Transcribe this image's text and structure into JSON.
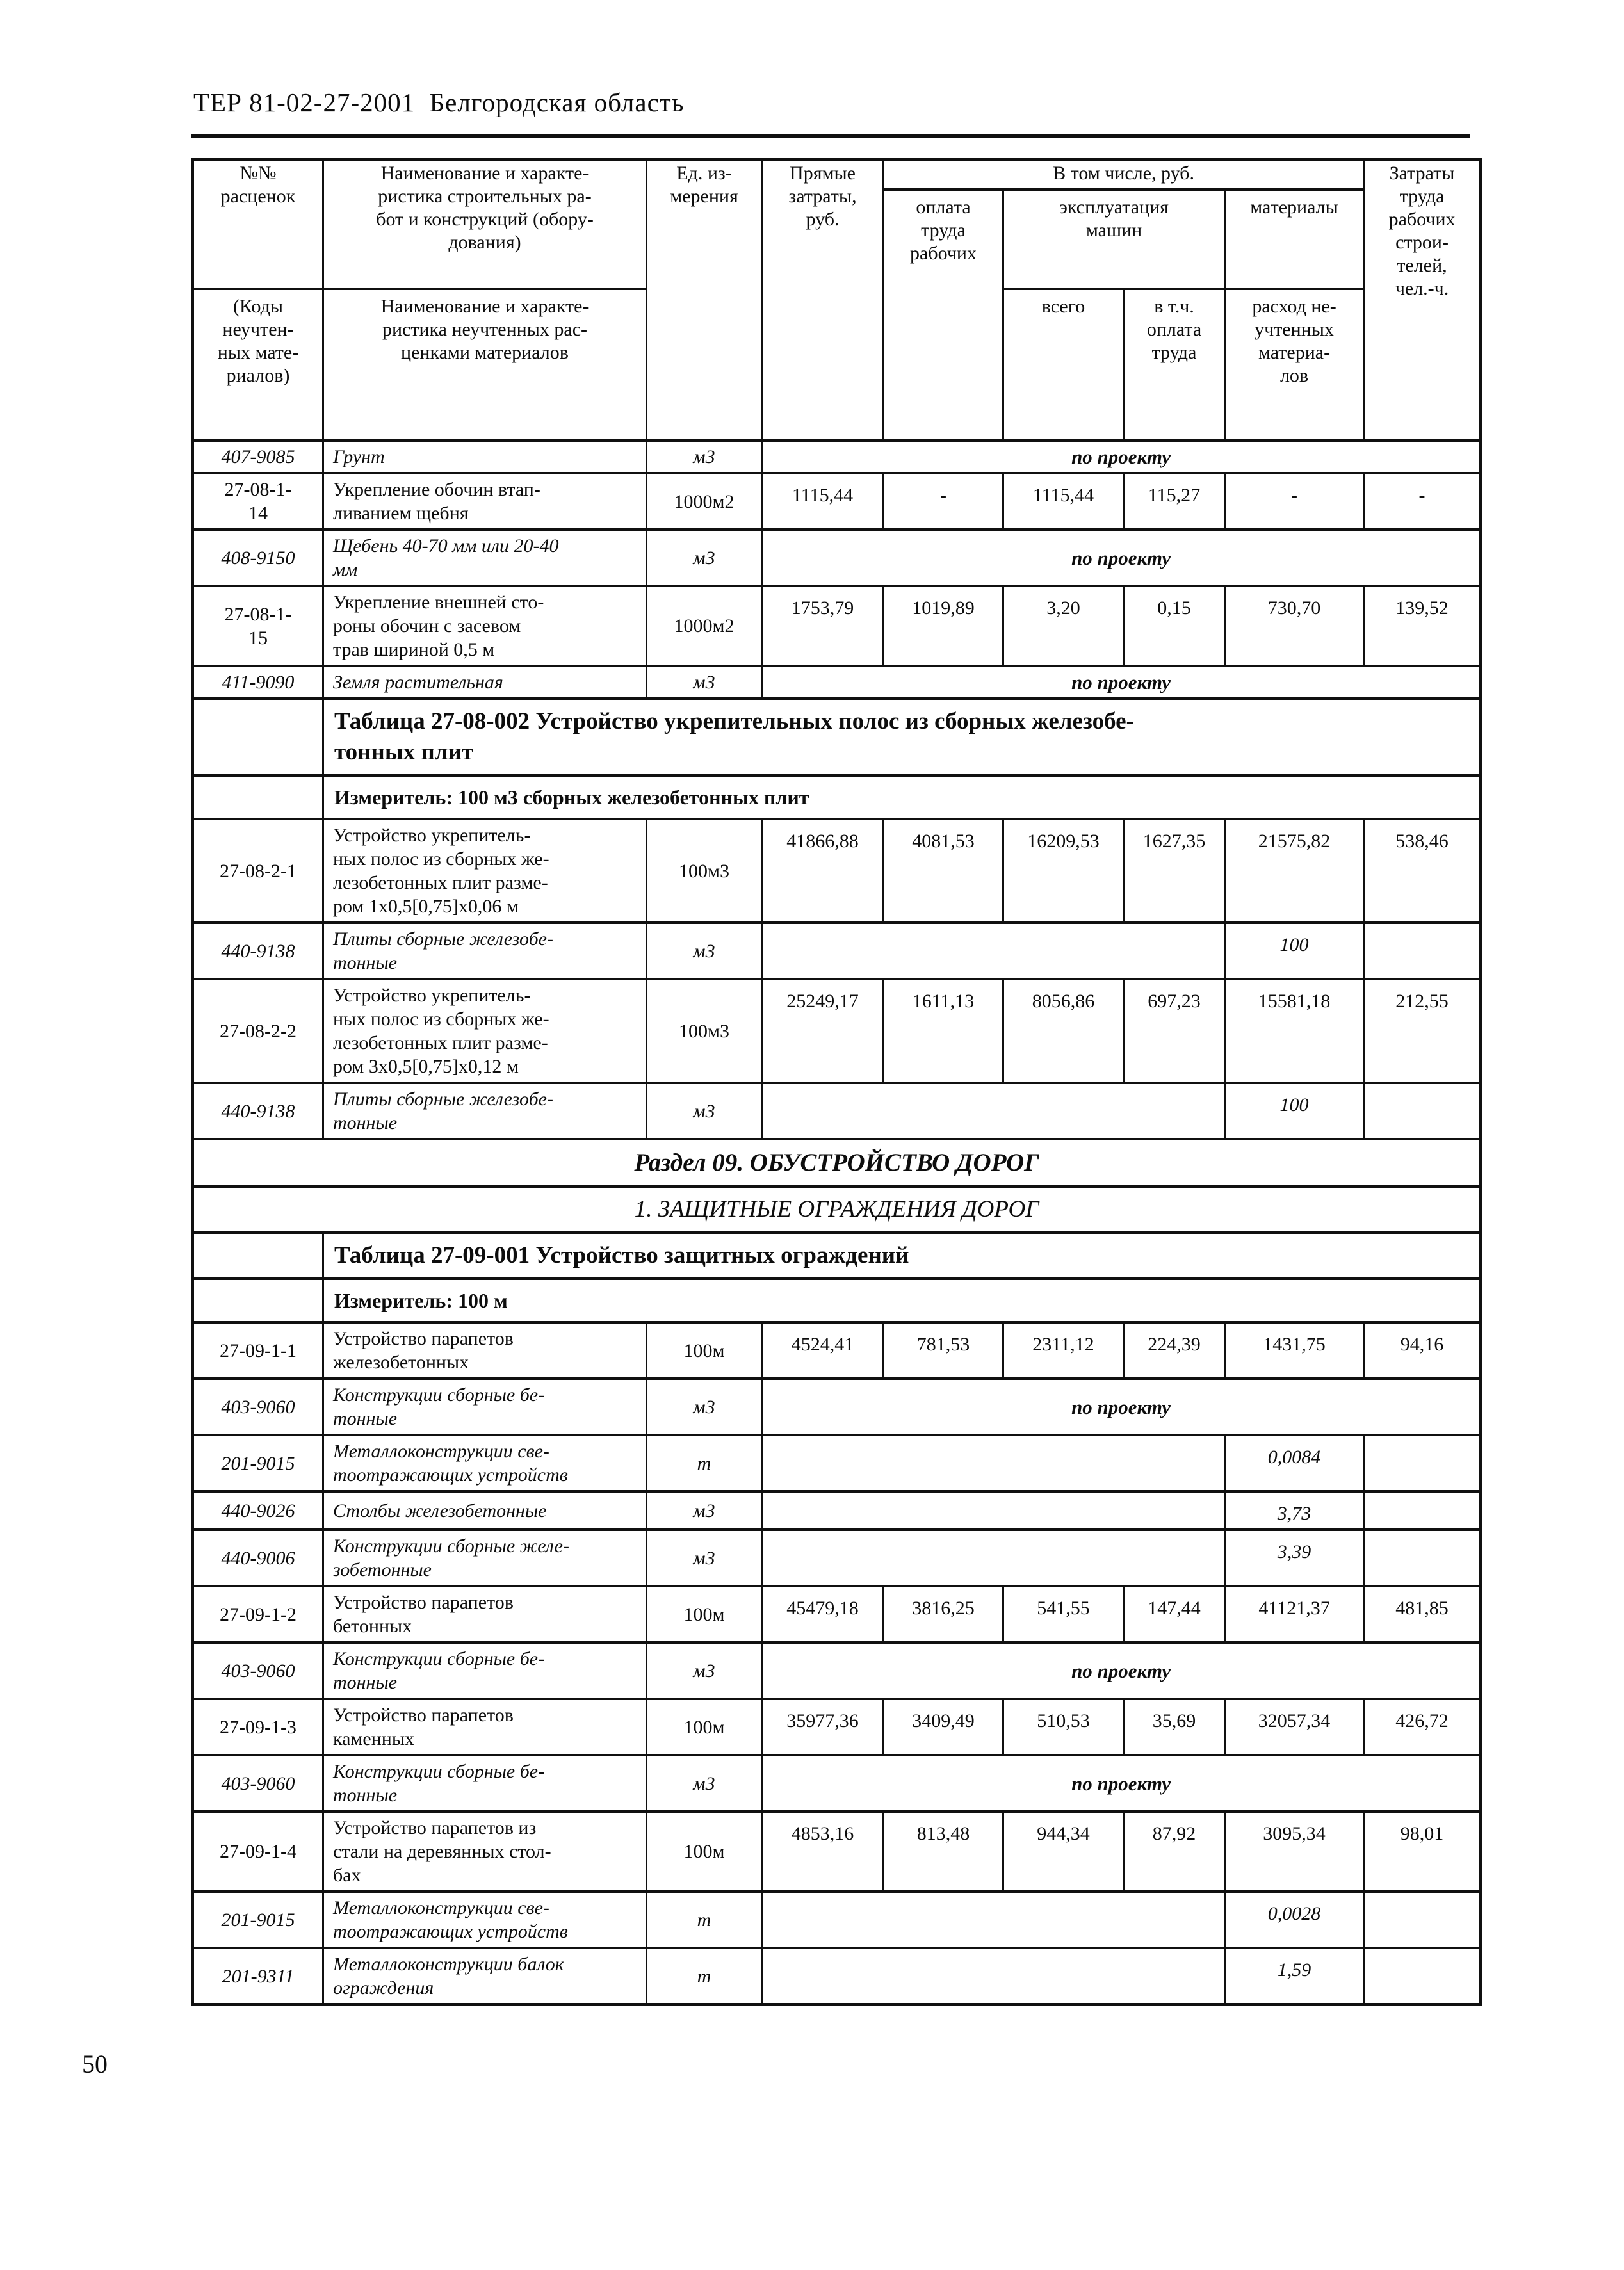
{
  "page": {
    "title": "ТЕР 81-02-27-2001  Белгородская область",
    "number": "50"
  },
  "table": {
    "header": {
      "rate_no": "№№\nрасценок",
      "codes": "(Коды\nнеучтен-\nных мате-\nриалов)",
      "work_name": "Наименование и характе-\nристика строительных ра-\nбот и конструкций (обору-\nдования)",
      "material_name": "Наименование и характе-\nристика неучтенных рас-\nценками материалов",
      "unit": "Ед. из-\nмерения",
      "direct_costs": "Прямые\nзатраты,\nруб.",
      "including": "В том числе, руб.",
      "wages": "оплата\nтруда\nрабочих",
      "machines": "эксплуатация\nмашин",
      "materials": "материалы",
      "machines_total": "всего",
      "machines_wages": "в т.ч.\nоплата\nтруда",
      "materials_consumption": "расход не-\nучтенных\nматериа-\nлов",
      "labor_costs": "Затраты\nтруда\nрабочих\nстрои-\nтелей,\nчел.-ч."
    },
    "project_note": "по проекту",
    "rows": [
      {
        "type": "resource_project",
        "code": "407-9085",
        "name": "Грунт",
        "unit": "м3"
      },
      {
        "type": "work",
        "code": "27-08-1-\n14",
        "name": "Укрепление обочин втап-\nливанием щебня",
        "unit": "1000м2",
        "values": [
          "1115,44",
          "-",
          "1115,44",
          "115,27",
          "-",
          "-"
        ]
      },
      {
        "type": "resource_project",
        "code": "408-9150",
        "name": "Щебень 40-70 мм или 20-40\nмм",
        "unit": "м3"
      },
      {
        "type": "work",
        "code": "27-08-1-\n15",
        "name": "Укрепление внешней сто-\nроны обочин с засевом\nтрав шириной 0,5 м",
        "unit": "1000м2",
        "values": [
          "1753,79",
          "1019,89",
          "3,20",
          "0,15",
          "730,70",
          "139,52"
        ]
      },
      {
        "type": "resource_project",
        "code": "411-9090",
        "name": "Земля растительная",
        "unit": "м3"
      },
      {
        "type": "table_title",
        "text": "Таблица 27-08-002 Устройство укрепительных полос из сборных железобе-\nтонных плит"
      },
      {
        "type": "measurer",
        "text": "Измеритель: 100 м3 сборных железобетонных плит"
      },
      {
        "type": "work",
        "code": "27-08-2-1",
        "name": "Устройство укрепитель-\nных полос из сборных же-\nлезобетонных плит разме-\nром 1х0,5[0,75]х0,06 м",
        "unit": "100м3",
        "values": [
          "41866,88",
          "4081,53",
          "16209,53",
          "1627,35",
          "21575,82",
          "538,46"
        ]
      },
      {
        "type": "resource_value",
        "code": "440-9138",
        "name": "Плиты сборные железобе-\nтонные",
        "unit": "м3",
        "consumption": "100"
      },
      {
        "type": "work",
        "code": "27-08-2-2",
        "name": "Устройство укрепитель-\nных полос из сборных же-\nлезобетонных плит разме-\nром 3х0,5[0,75]х0,12 м",
        "unit": "100м3",
        "values": [
          "25249,17",
          "1611,13",
          "8056,86",
          "697,23",
          "15581,18",
          "212,55"
        ]
      },
      {
        "type": "resource_value",
        "code": "440-9138",
        "name": "Плиты сборные железобе-\nтонные",
        "unit": "м3",
        "consumption": "100"
      },
      {
        "type": "section",
        "text": "Раздел 09. ОБУСТРОЙСТВО ДОРОГ"
      },
      {
        "type": "subsection",
        "text": "1. ЗАЩИТНЫЕ ОГРАЖДЕНИЯ ДОРОГ"
      },
      {
        "type": "table_title",
        "text": "Таблица 27-09-001 Устройство защитных ограждений"
      },
      {
        "type": "measurer",
        "text": "Измеритель: 100 м"
      },
      {
        "type": "work",
        "code": "27-09-1-1",
        "name": "Устройство парапетов\nжелезобетонных",
        "unit": "100м",
        "values": [
          "4524,41",
          "781,53",
          "2311,12",
          "224,39",
          "1431,75",
          "94,16"
        ]
      },
      {
        "type": "resource_project",
        "code": "403-9060",
        "name": "Конструкции сборные бе-\nтонные",
        "unit": "м3"
      },
      {
        "type": "resource_value",
        "code": "201-9015",
        "name": "Металлоконструкции све-\nтоотражающих устройств",
        "unit": "т",
        "consumption": "0,0084"
      },
      {
        "type": "resource_value",
        "code": "440-9026",
        "name": "Столбы железобетонные",
        "unit": "м3",
        "consumption": "3,73"
      },
      {
        "type": "resource_value",
        "code": "440-9006",
        "name": "Конструкции сборные желе-\nзобетонные",
        "unit": "м3",
        "consumption": "3,39"
      },
      {
        "type": "work",
        "code": "27-09-1-2",
        "name": "Устройство парапетов\nбетонных",
        "unit": "100м",
        "values": [
          "45479,18",
          "3816,25",
          "541,55",
          "147,44",
          "41121,37",
          "481,85"
        ]
      },
      {
        "type": "resource_project",
        "code": "403-9060",
        "name": "Конструкции сборные бе-\nтонные",
        "unit": "м3"
      },
      {
        "type": "work",
        "code": "27-09-1-3",
        "name": "Устройство парапетов\nкаменных",
        "unit": "100м",
        "values": [
          "35977,36",
          "3409,49",
          "510,53",
          "35,69",
          "32057,34",
          "426,72"
        ]
      },
      {
        "type": "resource_project",
        "code": "403-9060",
        "name": "Конструкции сборные бе-\nтонные",
        "unit": "м3"
      },
      {
        "type": "work",
        "code": "27-09-1-4",
        "name": "Устройство парапетов из\nстали на деревянных стол-\nбах",
        "unit": "100м",
        "values": [
          "4853,16",
          "813,48",
          "944,34",
          "87,92",
          "3095,34",
          "98,01"
        ]
      },
      {
        "type": "resource_value",
        "code": "201-9015",
        "name": "Металлоконструкции све-\nтоотражающих устройств",
        "unit": "т",
        "consumption": "0,0028"
      },
      {
        "type": "resource_value",
        "code": "201-9311",
        "name": "Металлоконструкции балок\nограждения",
        "unit": "т",
        "consumption": "1,59"
      }
    ]
  }
}
